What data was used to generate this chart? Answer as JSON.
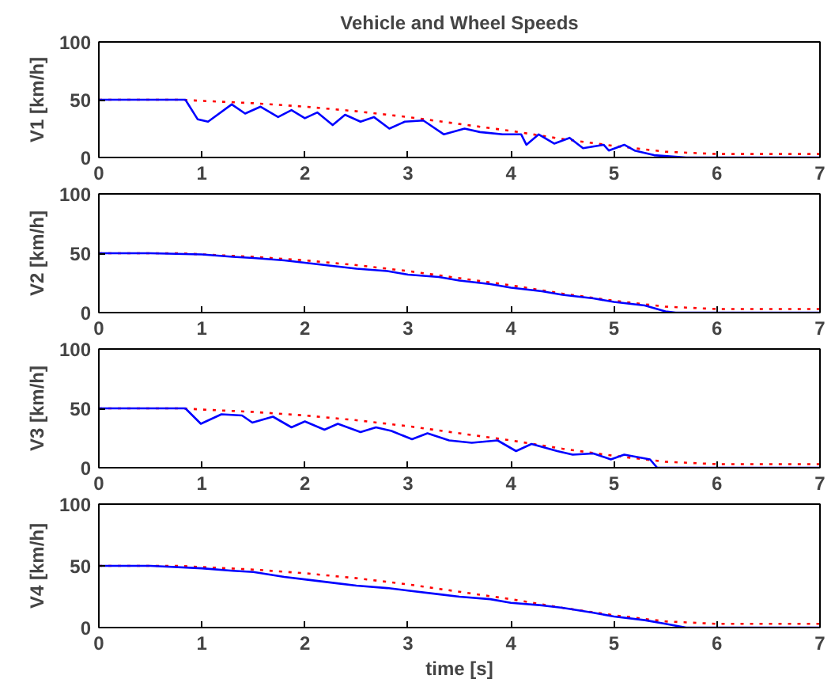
{
  "chart_data": [
    {
      "type": "line",
      "title": "Vehicle and Wheel Speeds",
      "ylabel": "V1 [km/h]",
      "xlim": [
        0,
        7
      ],
      "ylim": [
        0,
        100
      ],
      "xticks": [
        0,
        1,
        2,
        3,
        4,
        5,
        6,
        7
      ],
      "yticks": [
        0,
        50,
        100
      ],
      "grid": false,
      "series": [
        {
          "color": "#ff0000",
          "line_style": "dotted",
          "x": [
            0,
            0.8,
            1,
            1.5,
            2,
            2.5,
            3,
            3.5,
            4,
            4.5,
            5,
            5.5,
            6,
            7
          ],
          "values": [
            50,
            50,
            49,
            47,
            44,
            40,
            35,
            29,
            23,
            16,
            10,
            5,
            3,
            3
          ]
        },
        {
          "color": "#0000ff",
          "line_style": "solid",
          "x": [
            0,
            0.84,
            0.96,
            1.06,
            1.29,
            1.42,
            1.57,
            1.74,
            1.87,
            2.0,
            2.12,
            2.27,
            2.39,
            2.54,
            2.67,
            2.82,
            2.97,
            3.15,
            3.35,
            3.55,
            3.7,
            3.92,
            4.1,
            4.15,
            4.27,
            4.42,
            4.57,
            4.7,
            4.9,
            4.95,
            5.1,
            5.2,
            5.39,
            5.7,
            7
          ],
          "values": [
            50,
            50,
            33,
            31,
            46,
            38,
            44,
            35,
            41,
            34,
            39,
            28,
            37,
            31,
            35,
            25,
            31,
            32,
            20,
            25,
            22,
            20,
            20,
            11,
            20,
            12,
            17,
            8,
            11,
            6,
            11,
            6,
            2,
            0,
            0
          ]
        }
      ]
    },
    {
      "type": "line",
      "ylabel": "V2 [km/h]",
      "xlim": [
        0,
        7
      ],
      "ylim": [
        0,
        100
      ],
      "xticks": [
        0,
        1,
        2,
        3,
        4,
        5,
        6,
        7
      ],
      "yticks": [
        0,
        50,
        100
      ],
      "grid": false,
      "series": [
        {
          "color": "#ff0000",
          "line_style": "dotted",
          "x": [
            0,
            0.8,
            1,
            1.5,
            2,
            2.5,
            3,
            3.5,
            4,
            4.5,
            5,
            5.5,
            6,
            7
          ],
          "values": [
            50,
            50,
            49,
            47,
            44,
            40,
            35,
            29,
            23,
            16,
            10,
            5,
            3,
            3
          ]
        },
        {
          "color": "#0000ff",
          "line_style": "solid",
          "x": [
            0,
            0.5,
            1,
            1.3,
            1.5,
            1.8,
            2,
            2.3,
            2.5,
            2.8,
            3,
            3.3,
            3.5,
            3.8,
            4,
            4.3,
            4.5,
            4.8,
            5,
            5.3,
            5.5,
            5.6,
            7
          ],
          "values": [
            50,
            50,
            49,
            47,
            46,
            44,
            42,
            39,
            37,
            35,
            32,
            30,
            27,
            24,
            21,
            18,
            15,
            12,
            9,
            6,
            1,
            0,
            0
          ]
        }
      ]
    },
    {
      "type": "line",
      "ylabel": "V3 [km/h]",
      "xlim": [
        0,
        7
      ],
      "ylim": [
        0,
        100
      ],
      "xticks": [
        0,
        1,
        2,
        3,
        4,
        5,
        6,
        7
      ],
      "yticks": [
        0,
        50,
        100
      ],
      "grid": false,
      "series": [
        {
          "color": "#ff0000",
          "line_style": "dotted",
          "x": [
            0,
            0.8,
            1,
            1.5,
            2,
            2.5,
            3,
            3.5,
            4,
            4.5,
            5,
            5.5,
            6,
            7
          ],
          "values": [
            50,
            50,
            49,
            47,
            44,
            40,
            35,
            29,
            23,
            16,
            10,
            5,
            3,
            3
          ]
        },
        {
          "color": "#0000ff",
          "line_style": "solid",
          "x": [
            0,
            0.84,
            0.99,
            1.19,
            1.39,
            1.49,
            1.69,
            1.87,
            2.0,
            2.19,
            2.32,
            2.54,
            2.69,
            2.84,
            3.04,
            3.19,
            3.4,
            3.62,
            3.87,
            4.05,
            4.2,
            4.45,
            4.6,
            4.8,
            4.97,
            5.1,
            5.35,
            5.42,
            7
          ],
          "values": [
            50,
            50,
            37,
            45,
            44,
            38,
            43,
            34,
            39,
            32,
            37,
            30,
            34,
            31,
            24,
            29,
            23,
            21,
            23,
            14,
            20,
            14,
            11,
            12,
            7,
            11,
            7,
            0,
            0
          ]
        }
      ]
    },
    {
      "type": "line",
      "ylabel": "V4 [km/h]",
      "xlabel": "time [s]",
      "xlim": [
        0,
        7
      ],
      "ylim": [
        0,
        100
      ],
      "xticks": [
        0,
        1,
        2,
        3,
        4,
        5,
        6,
        7
      ],
      "yticks": [
        0,
        50,
        100
      ],
      "grid": false,
      "series": [
        {
          "color": "#ff0000",
          "line_style": "dotted",
          "x": [
            0,
            0.8,
            1,
            1.5,
            2,
            2.5,
            3,
            3.5,
            4,
            4.5,
            5,
            5.5,
            6,
            7
          ],
          "values": [
            50,
            50,
            49,
            47,
            44,
            40,
            35,
            29,
            23,
            16,
            10,
            5,
            3,
            3
          ]
        },
        {
          "color": "#0000ff",
          "line_style": "solid",
          "x": [
            0,
            0.5,
            1,
            1.3,
            1.5,
            1.8,
            2,
            2.3,
            2.5,
            2.8,
            3,
            3.3,
            3.5,
            3.8,
            4,
            4.3,
            4.5,
            4.8,
            5,
            5.3,
            5.5,
            5.7,
            7
          ],
          "values": [
            50,
            50,
            48,
            46,
            45,
            41,
            39,
            36,
            34,
            32,
            30,
            27,
            25,
            23,
            20,
            18,
            16,
            12,
            9,
            6,
            3,
            0,
            0
          ]
        }
      ]
    }
  ]
}
